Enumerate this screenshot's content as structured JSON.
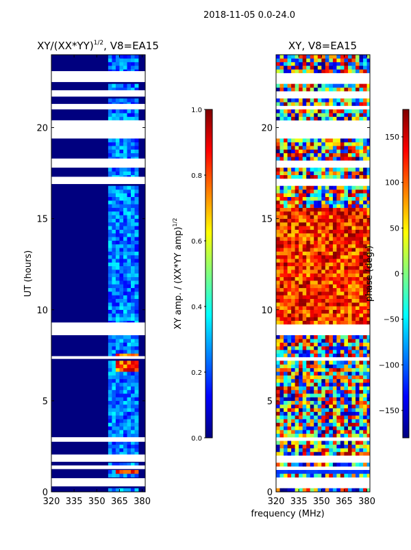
{
  "suptitle": "2018-11-05 0.0-24.0",
  "shared_xlabel": "frequency (MHz)",
  "colors": {
    "jet": [
      "#00007f",
      "#0000ff",
      "#007fff",
      "#00ffff",
      "#7fff7f",
      "#ffff00",
      "#ff7f00",
      "#ff0000",
      "#7f0000"
    ],
    "axis": "#000000",
    "background": "#ffffff"
  },
  "chart_data": [
    {
      "type": "heatmap",
      "title_main": "XY/(XX*YY)",
      "title_sup": "1/2",
      "title_tail": ", V8=EA15",
      "xlabel": "",
      "ylabel": "UT (hours)",
      "xlim": [
        320,
        382
      ],
      "ylim": [
        0,
        24
      ],
      "xticks": [
        320,
        335,
        350,
        365,
        380
      ],
      "yticks": [
        0,
        5,
        10,
        15,
        20
      ],
      "colorbar": {
        "label_main": "XY amp. / (XX*YY amp)",
        "label_sup": "1/2",
        "range": [
          0.0,
          1.0
        ],
        "ticks": [
          "0.0",
          "0.2",
          "0.4",
          "0.6",
          "0.8",
          "1.0"
        ]
      },
      "blank_intervals_hours": [
        [
          0.3,
          0.75
        ],
        [
          1.25,
          1.45
        ],
        [
          1.65,
          2.05
        ],
        [
          2.75,
          3.0
        ],
        [
          7.3,
          7.45
        ],
        [
          8.6,
          9.3
        ],
        [
          16.9,
          17.3
        ],
        [
          17.8,
          18.3
        ],
        [
          19.4,
          20.4
        ],
        [
          21.0,
          21.3
        ],
        [
          21.7,
          22.05
        ],
        [
          22.5,
          23.1
        ]
      ],
      "value_summary": "mostly 0.0-0.1 at 320-360 MHz; 0.1-0.4 near 360-375 MHz; hotspots ~0.7-0.9 near 0.9 h and 6.5-7.5 h at 362-378 MHz"
    },
    {
      "type": "heatmap",
      "title_main": "XY, V8=EA15",
      "xlabel": "",
      "ylabel": "",
      "xlim": [
        320,
        382
      ],
      "ylim": [
        0,
        24
      ],
      "xticks": [
        320,
        335,
        350,
        365,
        380
      ],
      "yticks": [
        0,
        5,
        10,
        15,
        20
      ],
      "colorbar": {
        "label": "phase (deg.)",
        "range": [
          -180,
          180
        ],
        "ticks": [
          "-150",
          "-100",
          "-50",
          "0",
          "50",
          "100",
          "150"
        ]
      },
      "blank_intervals_hours": [
        [
          0.3,
          0.75
        ],
        [
          1.25,
          1.45
        ],
        [
          1.65,
          2.05
        ],
        [
          2.75,
          3.0
        ],
        [
          7.3,
          7.45
        ],
        [
          8.6,
          9.3
        ],
        [
          16.9,
          17.3
        ],
        [
          17.8,
          18.3
        ],
        [
          19.4,
          20.4
        ],
        [
          21.0,
          21.3
        ],
        [
          21.7,
          22.05
        ],
        [
          22.5,
          23.1
        ]
      ],
      "value_summary": "phase mostly +50 to +180 deg between 9 and 15.5 h; mixed / noisy elsewhere; about -120 deg near 0.9 h"
    }
  ]
}
